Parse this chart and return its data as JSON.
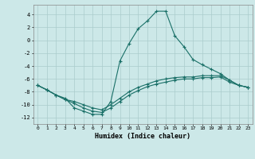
{
  "xlabel": "Humidex (Indice chaleur)",
  "background_color": "#cce8e8",
  "grid_color": "#aacccc",
  "line_color": "#1a7068",
  "xlim_min": -0.5,
  "xlim_max": 23.5,
  "ylim_min": -13,
  "ylim_max": 5.5,
  "yticks": [
    -12,
    -10,
    -8,
    -6,
    -4,
    -2,
    0,
    2,
    4
  ],
  "xticks": [
    0,
    1,
    2,
    3,
    4,
    5,
    6,
    7,
    8,
    9,
    10,
    11,
    12,
    13,
    14,
    15,
    16,
    17,
    18,
    19,
    20,
    21,
    22,
    23
  ],
  "line1_x": [
    0,
    1,
    2,
    3,
    4,
    5,
    6,
    7,
    8,
    9,
    10,
    11,
    12,
    13,
    14,
    15,
    16,
    17,
    18,
    19,
    20,
    21,
    22,
    23
  ],
  "line1_y": [
    -7.0,
    -7.7,
    -8.5,
    -9.0,
    -10.5,
    -11.0,
    -11.5,
    -11.5,
    -9.5,
    -3.2,
    -0.5,
    1.8,
    3.0,
    4.5,
    4.5,
    0.7,
    -1.0,
    -3.0,
    -3.8,
    -4.5,
    -5.2,
    -6.2,
    -7.0,
    -7.3
  ],
  "line2_x": [
    0,
    1,
    2,
    3,
    4,
    5,
    6,
    7,
    8,
    9,
    10,
    11,
    12,
    13,
    14,
    15,
    16,
    17,
    18,
    19,
    20,
    21,
    22,
    23
  ],
  "line2_y": [
    -7.0,
    -7.7,
    -8.5,
    -9.2,
    -9.8,
    -10.5,
    -11.0,
    -11.2,
    -10.5,
    -9.5,
    -8.5,
    -7.8,
    -7.2,
    -6.8,
    -6.5,
    -6.2,
    -6.0,
    -6.0,
    -5.8,
    -5.8,
    -5.7,
    -6.5,
    -7.0,
    -7.3
  ],
  "line3_x": [
    0,
    1,
    2,
    3,
    4,
    5,
    6,
    7,
    8,
    9,
    10,
    11,
    12,
    13,
    14,
    15,
    16,
    17,
    18,
    19,
    20,
    21,
    22,
    23
  ],
  "line3_y": [
    -7.0,
    -7.7,
    -8.5,
    -9.2,
    -9.5,
    -10.0,
    -10.5,
    -10.8,
    -10.0,
    -9.0,
    -8.0,
    -7.3,
    -6.8,
    -6.3,
    -6.0,
    -5.8,
    -5.7,
    -5.7,
    -5.5,
    -5.5,
    -5.5,
    -6.2,
    -7.0,
    -7.3
  ]
}
